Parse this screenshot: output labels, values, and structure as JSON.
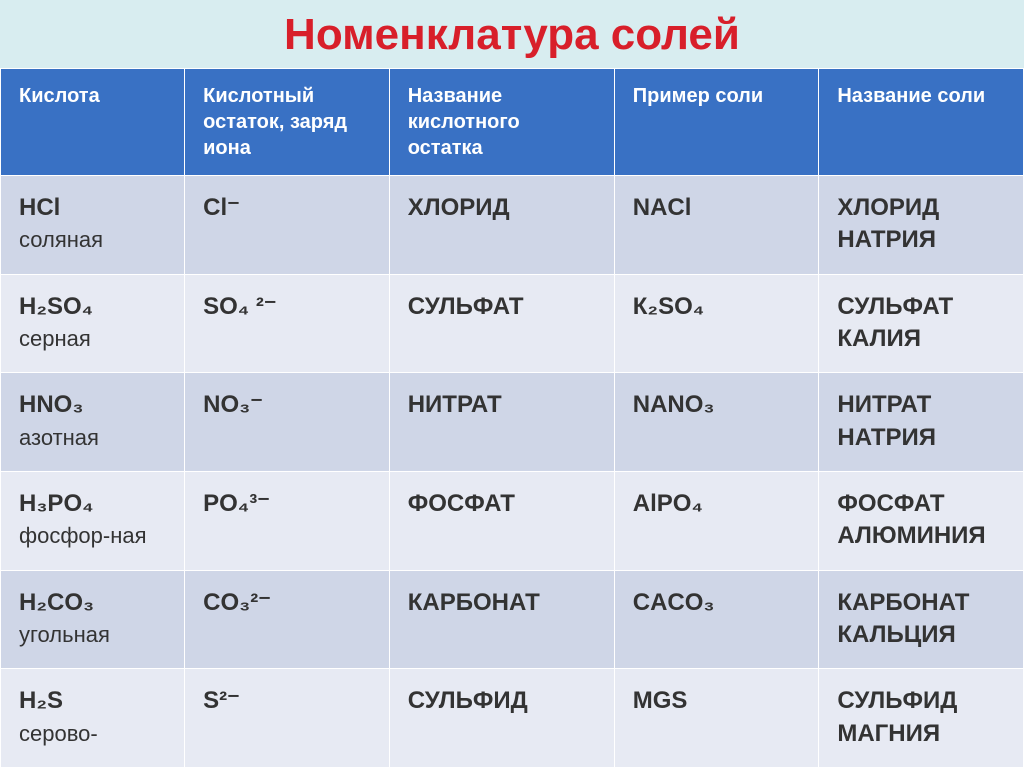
{
  "title": "Номенклатура солей",
  "columns": {
    "acid": "Кислота",
    "residue": "Кислотный остаток, заряд иона",
    "residue_name": "Название кислотного остатка",
    "salt_example": "Пример соли",
    "salt_name": "Название соли"
  },
  "rows": [
    {
      "acid_formula": "HCl",
      "acid_name": "соляная",
      "residue": "Cl⁻",
      "residue_name": "ХЛОРИД",
      "salt_example": "NACl",
      "salt_name": "ХЛОРИД НАТРИЯ"
    },
    {
      "acid_formula": "H₂SO₄",
      "acid_name": "серная",
      "residue": "SO₄ ²⁻",
      "residue_name": "СУЛЬФАТ",
      "salt_example": "К₂SO₄",
      "salt_name": "СУЛЬФАТ КАЛИЯ"
    },
    {
      "acid_formula": "HNO₃",
      "acid_name": "азотная",
      "residue": "NO₃⁻",
      "residue_name": "НИТРАТ",
      "salt_example": "NANO₃",
      "salt_name": "НИТРАТ НАТРИЯ"
    },
    {
      "acid_formula": "H₃PO₄",
      "acid_name": "фосфор-ная",
      "residue": "PO₄³⁻",
      "residue_name": "ФОСФАТ",
      "salt_example": "AlPO₄",
      "salt_name": "ФОСФАТ АЛЮМИНИЯ"
    },
    {
      "acid_formula": "H₂CO₃",
      "acid_name": "угольная",
      "residue": "CO₃²⁻",
      "residue_name": "КАРБОНАТ",
      "salt_example": "CACO₃",
      "salt_name": "КАРБОНАТ КАЛЬЦИЯ"
    },
    {
      "acid_formula": "H₂S",
      "acid_name": "серово-",
      "residue": "S²⁻",
      "residue_name": "СУЛЬФИД",
      "salt_example": "MGS",
      "salt_name": "СУЛЬФИД МАГНИЯ"
    }
  ],
  "style": {
    "title_color": "#d81f2a",
    "title_fontsize": 44,
    "header_bg": "#3971c4",
    "header_fg": "#ffffff",
    "header_fontsize": 20,
    "row_odd_bg": "#cfd6e7",
    "row_even_bg": "#e7eaf3",
    "cell_fontsize": 24,
    "cell_color": "#333333",
    "page_bg": "#d8edf0",
    "border_color": "#ffffff"
  }
}
